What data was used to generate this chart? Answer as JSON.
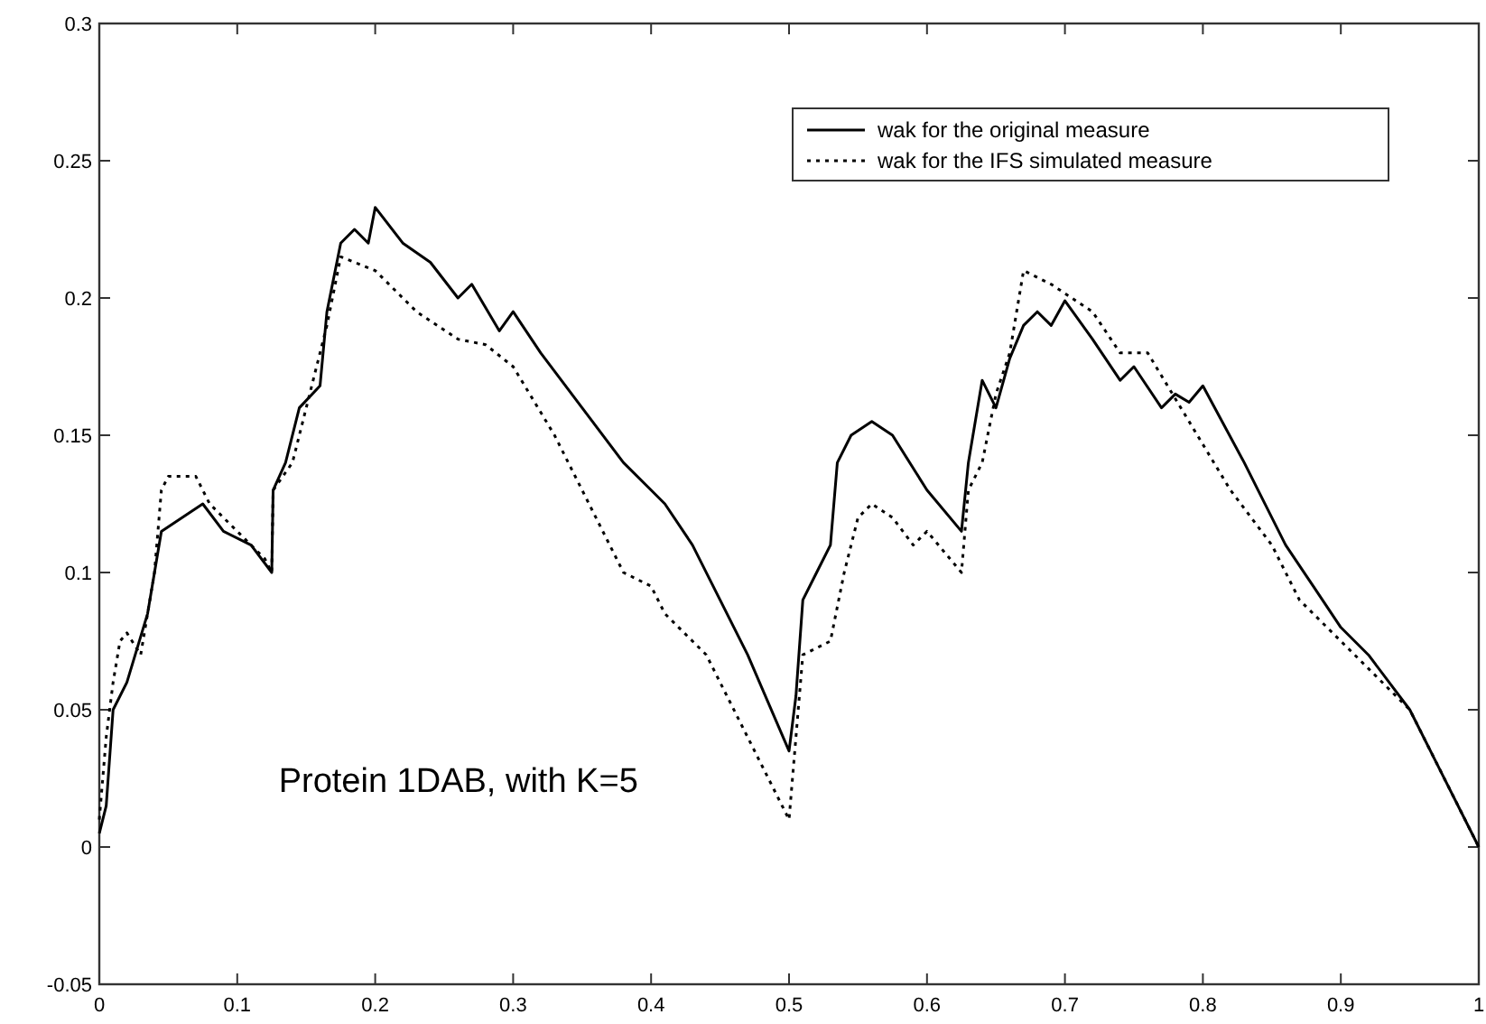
{
  "chart_data": {
    "type": "line",
    "xlim": [
      0,
      1
    ],
    "ylim": [
      -0.05,
      0.3
    ],
    "xticks": [
      0,
      0.1,
      0.2,
      0.3,
      0.4,
      0.5,
      0.6,
      0.7,
      0.8,
      0.9,
      1
    ],
    "yticks": [
      -0.05,
      0,
      0.05,
      0.1,
      0.15,
      0.2,
      0.25,
      0.3
    ],
    "grid": false,
    "legend": "top right",
    "annotations": [
      "Protein 1DAB, with K=5"
    ],
    "series": [
      {
        "name": "wak for the original measure",
        "color": "#000000",
        "line_style": "solid",
        "x": [
          0,
          0.005,
          0.01,
          0.02,
          0.035,
          0.045,
          0.06,
          0.075,
          0.09,
          0.11,
          0.125,
          0.126,
          0.135,
          0.145,
          0.16,
          0.165,
          0.175,
          0.185,
          0.195,
          0.2,
          0.22,
          0.24,
          0.26,
          0.27,
          0.29,
          0.3,
          0.32,
          0.35,
          0.38,
          0.4,
          0.41,
          0.43,
          0.45,
          0.47,
          0.5,
          0.505,
          0.51,
          0.52,
          0.53,
          0.535,
          0.545,
          0.56,
          0.575,
          0.6,
          0.625,
          0.63,
          0.64,
          0.65,
          0.66,
          0.67,
          0.68,
          0.69,
          0.7,
          0.72,
          0.74,
          0.75,
          0.77,
          0.78,
          0.79,
          0.8,
          0.83,
          0.86,
          0.88,
          0.9,
          0.92,
          0.95,
          0.97,
          1
        ],
        "values": [
          0.005,
          0.015,
          0.05,
          0.06,
          0.085,
          0.115,
          0.12,
          0.125,
          0.115,
          0.11,
          0.1,
          0.13,
          0.14,
          0.16,
          0.168,
          0.195,
          0.22,
          0.225,
          0.22,
          0.233,
          0.22,
          0.213,
          0.2,
          0.205,
          0.188,
          0.195,
          0.18,
          0.16,
          0.14,
          0.13,
          0.125,
          0.11,
          0.09,
          0.07,
          0.035,
          0.055,
          0.09,
          0.1,
          0.11,
          0.14,
          0.15,
          0.155,
          0.15,
          0.13,
          0.115,
          0.14,
          0.17,
          0.16,
          0.178,
          0.19,
          0.195,
          0.19,
          0.199,
          0.185,
          0.17,
          0.175,
          0.16,
          0.165,
          0.162,
          0.168,
          0.14,
          0.11,
          0.095,
          0.08,
          0.07,
          0.05,
          0.03,
          0
        ]
      },
      {
        "name": "wak for the IFS simulated measure",
        "color": "#000000",
        "line_style": "dotted",
        "x": [
          0,
          0.005,
          0.01,
          0.015,
          0.02,
          0.03,
          0.04,
          0.045,
          0.05,
          0.07,
          0.08,
          0.1,
          0.12,
          0.125,
          0.126,
          0.14,
          0.15,
          0.165,
          0.175,
          0.2,
          0.23,
          0.26,
          0.28,
          0.3,
          0.33,
          0.36,
          0.38,
          0.4,
          0.41,
          0.44,
          0.47,
          0.5,
          0.505,
          0.51,
          0.53,
          0.54,
          0.55,
          0.56,
          0.575,
          0.59,
          0.6,
          0.625,
          0.63,
          0.64,
          0.65,
          0.66,
          0.67,
          0.69,
          0.72,
          0.74,
          0.76,
          0.79,
          0.82,
          0.85,
          0.87,
          0.9,
          0.92,
          0.95,
          1
        ],
        "values": [
          0.01,
          0.04,
          0.06,
          0.075,
          0.078,
          0.07,
          0.1,
          0.13,
          0.135,
          0.135,
          0.125,
          0.115,
          0.105,
          0.1,
          0.13,
          0.14,
          0.16,
          0.19,
          0.215,
          0.21,
          0.195,
          0.185,
          0.183,
          0.175,
          0.15,
          0.12,
          0.1,
          0.095,
          0.085,
          0.07,
          0.04,
          0.01,
          0.04,
          0.07,
          0.075,
          0.1,
          0.12,
          0.125,
          0.12,
          0.11,
          0.115,
          0.1,
          0.13,
          0.14,
          0.165,
          0.18,
          0.21,
          0.205,
          0.195,
          0.18,
          0.18,
          0.155,
          0.13,
          0.11,
          0.09,
          0.075,
          0.065,
          0.05,
          0
        ]
      }
    ]
  }
}
